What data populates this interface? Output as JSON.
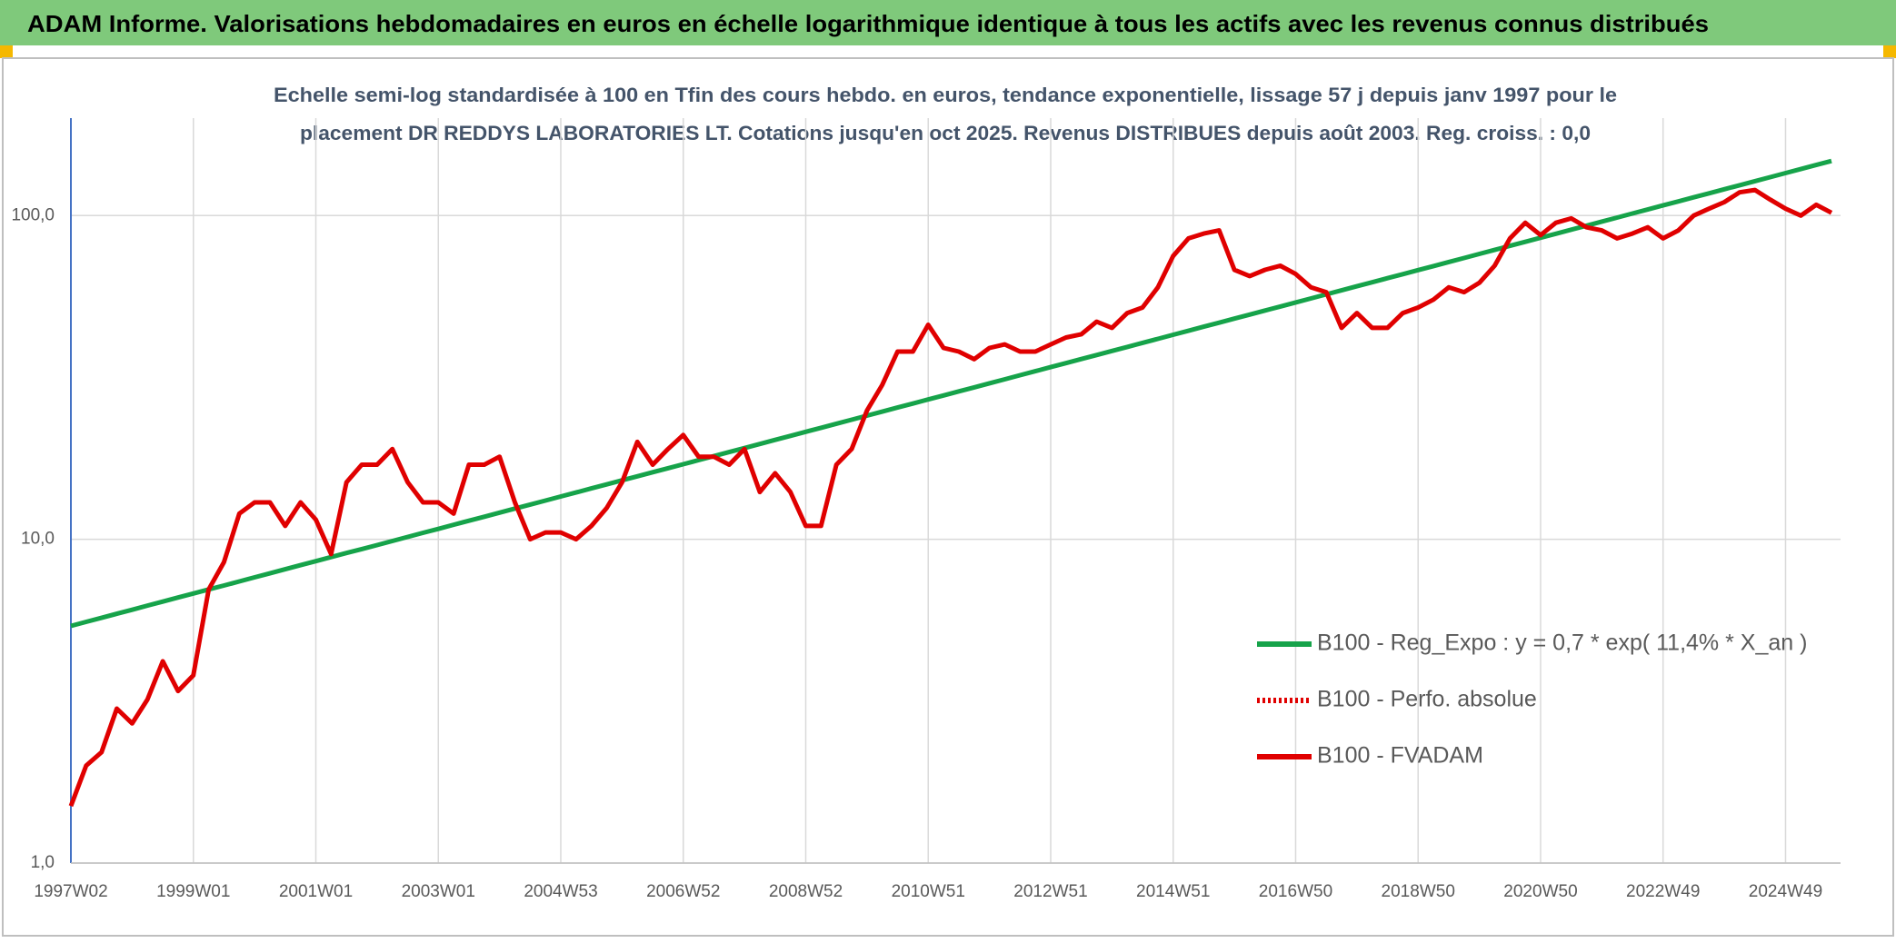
{
  "header": {
    "title": "ADAM Informe. Valorisations hebdomadaires en euros en échelle logarithmique identique à tous les actifs avec les revenus connus distribués"
  },
  "chart_data": {
    "type": "line",
    "title": "Echelle semi-log standardisée à 100 en Tfin des cours hebdo. en euros, tendance exponentielle, lissage 57 j depuis janv 1997 pour le",
    "subtitle": "placement DR REDDYS LABORATORIES LT. Cotations jusqu'en oct 2025. Revenus DISTRIBUES depuis août 2003. Reg. croiss. : 0,0",
    "log_y": true,
    "grid": true,
    "legend": "right",
    "ylim": [
      1,
      200
    ],
    "yticks": [
      {
        "value": 1,
        "label": "1,0"
      },
      {
        "value": 10,
        "label": "10,0"
      },
      {
        "value": 100,
        "label": "100,0"
      }
    ],
    "categories": [
      "1997W02",
      null,
      null,
      null,
      null,
      null,
      null,
      null,
      "1999W01",
      null,
      null,
      null,
      null,
      null,
      null,
      null,
      "2001W01",
      null,
      null,
      null,
      null,
      null,
      null,
      null,
      "2003W01",
      null,
      null,
      null,
      null,
      null,
      null,
      null,
      "2004W53",
      null,
      null,
      null,
      null,
      null,
      null,
      null,
      "2006W52",
      null,
      null,
      null,
      null,
      null,
      null,
      null,
      "2008W52",
      null,
      null,
      null,
      null,
      null,
      null,
      null,
      "2010W51",
      null,
      null,
      null,
      null,
      null,
      null,
      null,
      "2012W51",
      null,
      null,
      null,
      null,
      null,
      null,
      null,
      "2014W51",
      null,
      null,
      null,
      null,
      null,
      null,
      null,
      "2016W50",
      null,
      null,
      null,
      null,
      null,
      null,
      null,
      "2018W50",
      null,
      null,
      null,
      null,
      null,
      null,
      null,
      "2020W50",
      null,
      null,
      null,
      null,
      null,
      null,
      null,
      "2022W49",
      null,
      null,
      null,
      null,
      null,
      null,
      null,
      "2024W49",
      null,
      null,
      null
    ],
    "series": [
      {
        "name": "B100 - Reg_Expo : y = 0,7 * exp( 11,4% *  X_an )",
        "color": "#16a34a",
        "dash": "solid",
        "values": [
          5.4,
          5.56,
          5.72,
          5.89,
          6.06,
          6.24,
          6.42,
          6.61,
          6.8,
          7.0,
          7.2,
          7.41,
          7.63,
          7.85,
          8.08,
          8.32,
          8.56,
          8.81,
          9.07,
          9.33,
          9.6,
          9.88,
          10.17,
          10.47,
          10.77,
          11.09,
          11.41,
          11.74,
          12.09,
          12.44,
          12.8,
          13.17,
          13.56,
          13.95,
          14.36,
          14.78,
          15.21,
          15.65,
          16.11,
          16.58,
          17.06,
          17.56,
          18.07,
          18.6,
          19.14,
          19.7,
          20.28,
          20.87,
          21.48,
          22.1,
          22.75,
          23.41,
          24.1,
          24.8,
          25.52,
          26.27,
          27.03,
          27.82,
          28.63,
          29.47,
          30.33,
          31.21,
          32.12,
          33.06,
          34.02,
          35.02,
          36.04,
          37.09,
          38.17,
          39.28,
          40.43,
          41.61,
          42.82,
          44.07,
          45.36,
          46.68,
          48.04,
          49.44,
          50.89,
          52.37,
          53.9,
          55.47,
          57.09,
          58.75,
          60.47,
          62.23,
          64.05,
          65.91,
          67.84,
          69.82,
          71.85,
          73.95,
          76.11,
          78.33,
          80.61,
          82.96,
          85.39,
          87.88,
          90.44,
          93.08,
          95.79,
          98.59,
          101.46,
          104.42,
          107.47,
          110.6,
          113.83,
          117.15,
          120.57,
          124.09,
          127.71,
          131.43,
          135.27,
          139.21,
          143.28,
          147.46
        ]
      },
      {
        "name": "B100 - Perfo. absolue",
        "color": "#e00000",
        "dash": "dotted",
        "values": [
          null,
          null,
          null,
          null,
          null,
          null,
          null,
          null,
          null,
          null,
          null,
          null,
          null,
          null,
          null,
          null,
          null,
          null,
          null,
          null,
          null,
          null,
          null,
          null,
          null,
          null,
          null,
          null,
          null,
          null,
          null,
          null,
          null,
          null,
          null,
          null,
          null,
          null,
          null,
          null,
          null,
          null,
          null,
          null,
          null,
          null,
          null,
          null,
          null,
          null,
          null,
          null,
          null,
          null,
          null,
          null,
          null,
          null,
          null,
          null,
          null,
          null,
          null,
          null,
          null,
          null,
          null,
          null,
          null,
          null,
          null,
          null,
          null,
          null,
          null,
          null,
          null,
          null,
          null,
          null,
          null,
          null,
          null,
          null,
          null,
          null,
          null,
          null,
          null,
          null,
          null,
          null,
          null,
          null,
          null,
          null,
          null,
          null,
          null,
          null,
          null,
          null,
          null,
          null,
          null,
          null,
          null,
          null,
          null,
          null,
          null,
          null,
          null,
          null,
          null,
          null
        ]
      },
      {
        "name": "B100 - FVADAM",
        "color": "#e00000",
        "dash": "solid",
        "values": [
          1.5,
          2.0,
          2.2,
          3.0,
          2.7,
          3.2,
          4.2,
          3.4,
          3.8,
          7.0,
          8.5,
          12,
          13,
          13,
          11,
          13,
          11.5,
          9,
          15,
          17,
          17,
          19,
          15,
          13,
          13,
          12,
          17,
          17,
          18,
          13,
          10,
          10.5,
          10.5,
          10,
          11,
          12.5,
          15,
          20,
          17,
          19,
          21,
          18,
          18,
          17,
          19,
          14,
          16,
          14,
          11,
          11,
          17,
          19,
          25,
          30,
          38,
          38,
          46,
          39,
          38,
          36,
          39,
          40,
          38,
          38,
          40,
          42,
          43,
          47,
          45,
          50,
          52,
          60,
          75,
          85,
          88,
          90,
          68,
          65,
          68,
          70,
          66,
          60,
          58,
          45,
          50,
          45,
          45,
          50,
          52,
          55,
          60,
          58,
          62,
          70,
          85,
          95,
          87,
          95,
          98,
          92,
          90,
          85,
          88,
          92,
          85,
          90,
          100,
          105,
          110,
          118,
          120,
          112,
          105,
          100,
          108,
          102
        ]
      }
    ]
  }
}
